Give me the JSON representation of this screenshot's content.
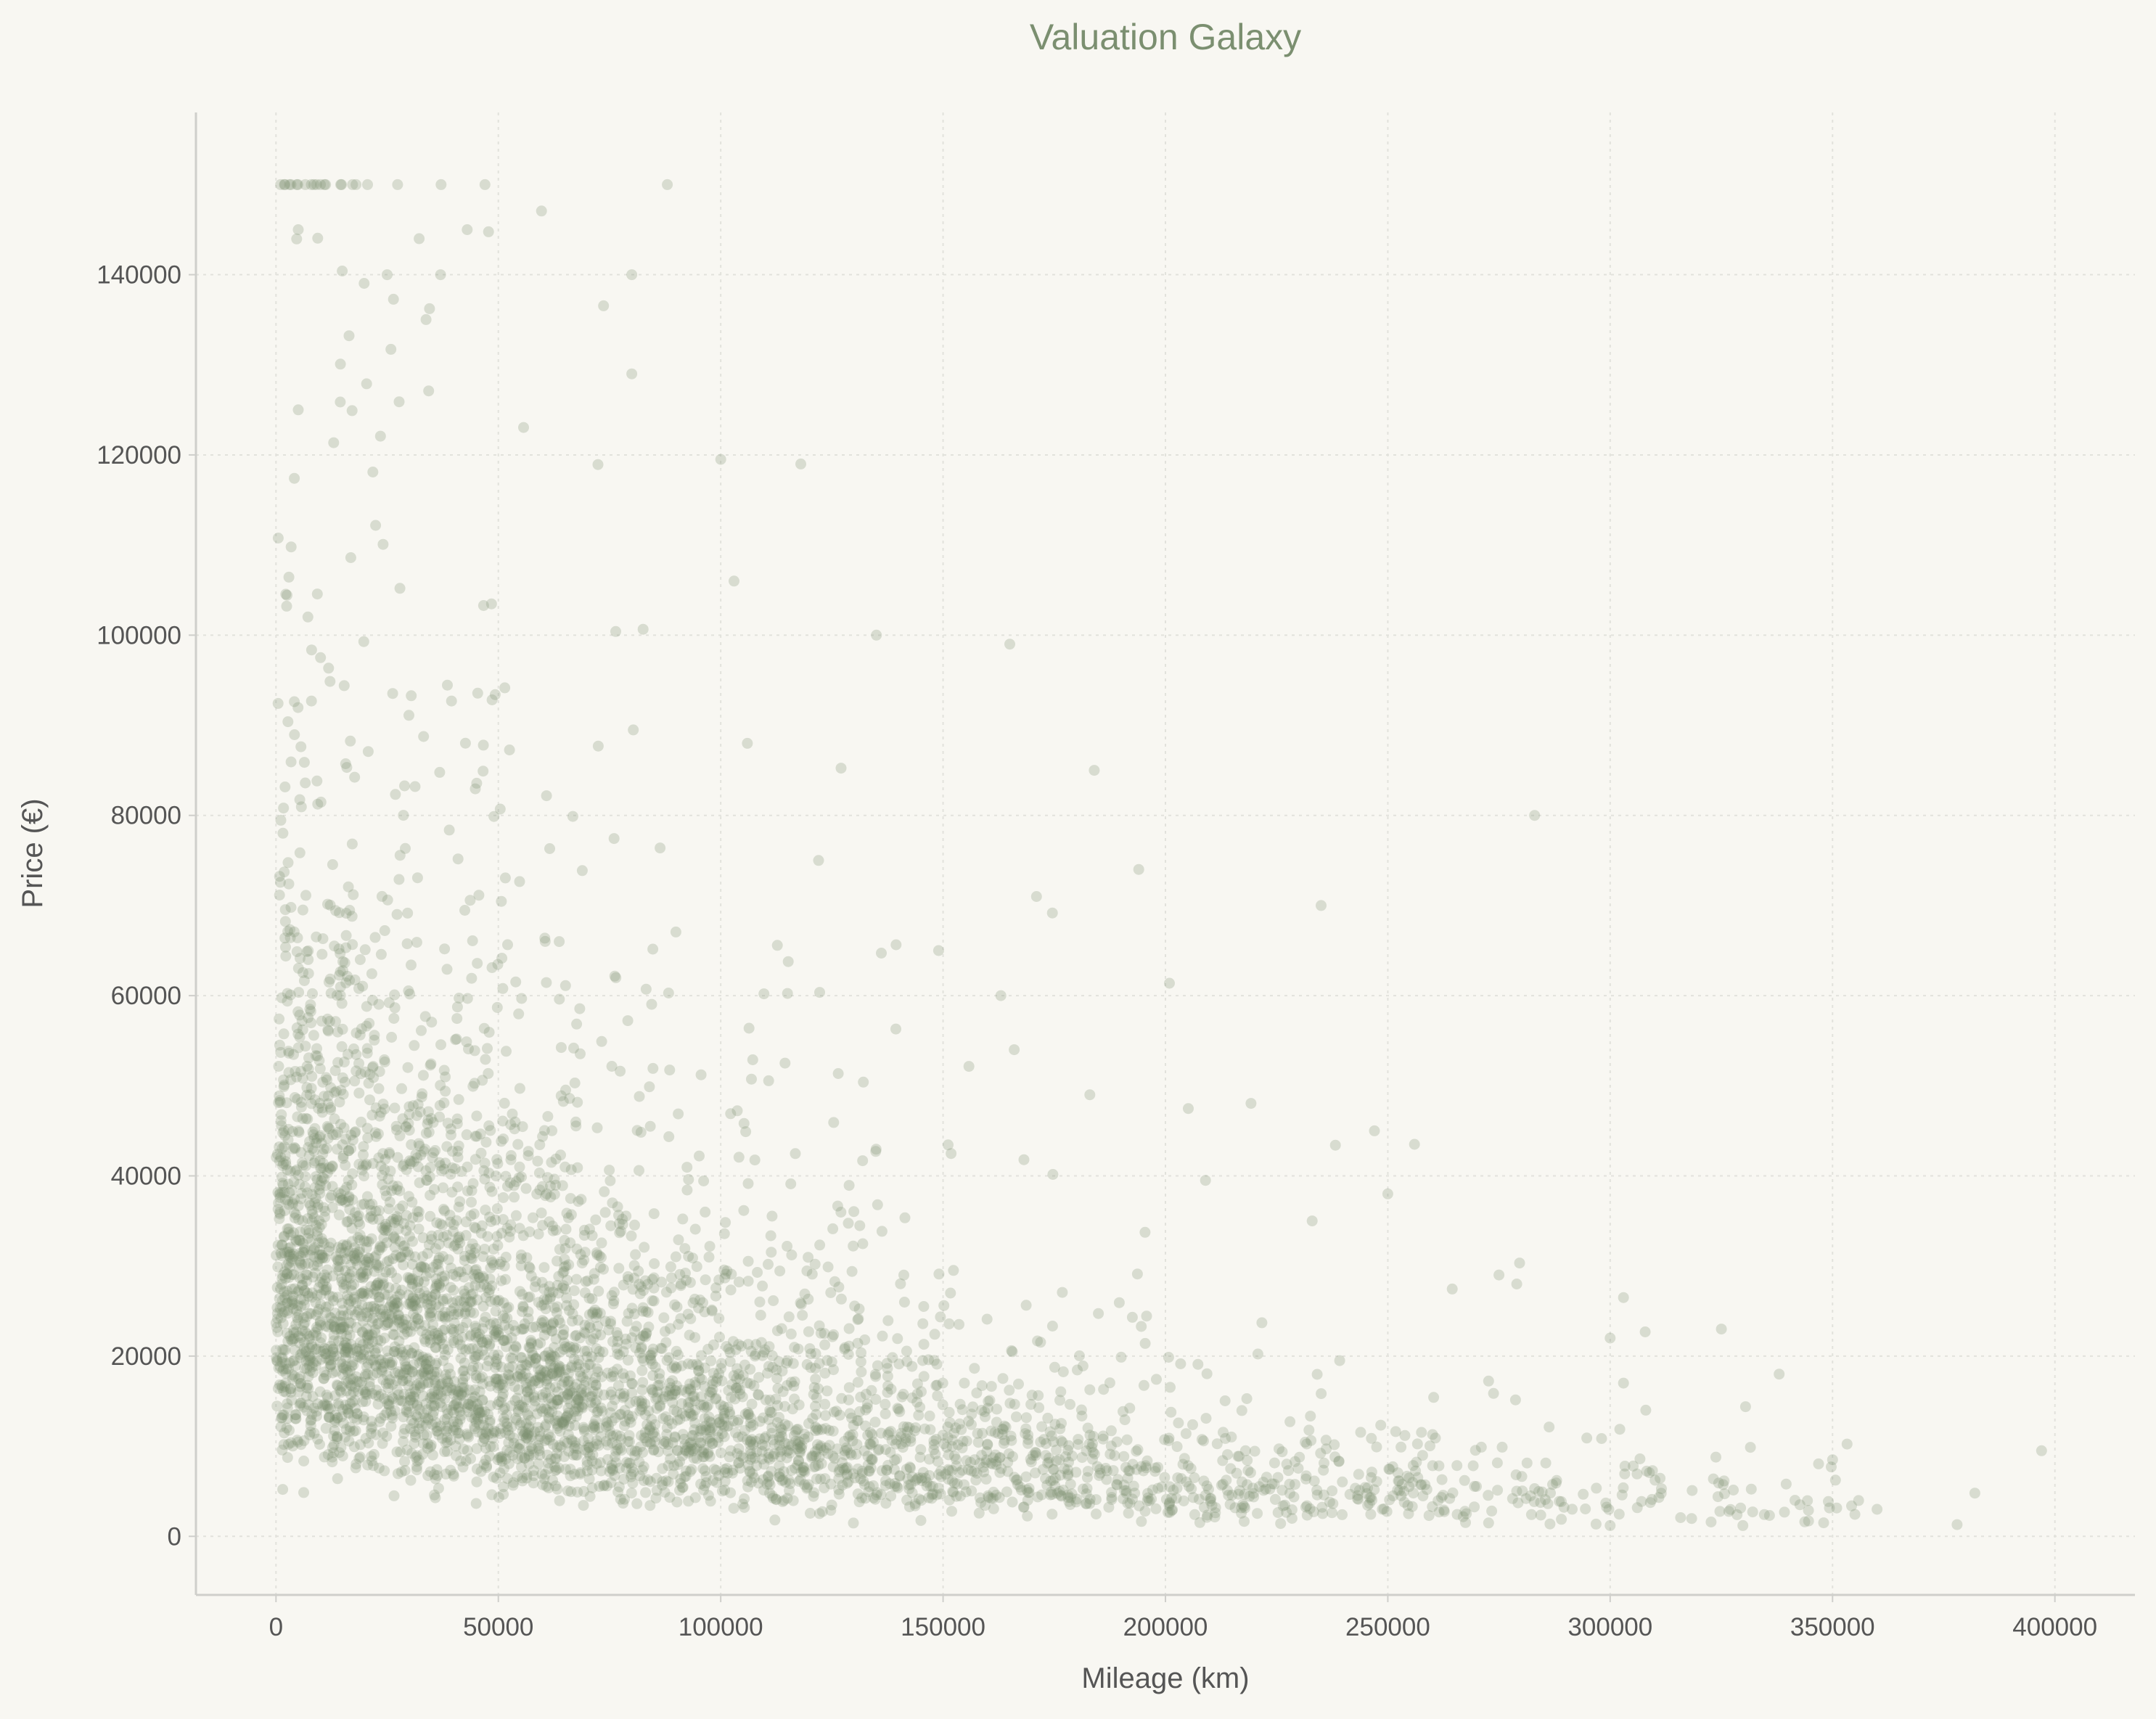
{
  "chart_data": {
    "type": "scatter",
    "title": "Valuation Galaxy",
    "xlabel": "Mileage (km)",
    "ylabel": "Price (€)",
    "xlim": [
      -18000,
      418000
    ],
    "ylim": [
      -6500,
      158000
    ],
    "xticks": [
      0,
      50000,
      100000,
      150000,
      200000,
      250000,
      300000,
      350000,
      400000
    ],
    "yticks": [
      0,
      20000,
      40000,
      60000,
      80000,
      100000,
      120000,
      140000
    ],
    "grid": true,
    "marker_color": "#7b8f70",
    "marker_alpha": 0.26,
    "notable_points": [
      {
        "x": 2000,
        "y": 150000
      },
      {
        "x": 10000,
        "y": 150000
      },
      {
        "x": 18000,
        "y": 150000
      },
      {
        "x": 47000,
        "y": 150000
      },
      {
        "x": 88000,
        "y": 150000
      },
      {
        "x": 5000,
        "y": 145000
      },
      {
        "x": 43000,
        "y": 145000
      },
      {
        "x": 80000,
        "y": 140000
      },
      {
        "x": 25000,
        "y": 140000
      },
      {
        "x": 37000,
        "y": 140000
      },
      {
        "x": 5000,
        "y": 125000
      },
      {
        "x": 80000,
        "y": 129000
      },
      {
        "x": 118000,
        "y": 119000
      },
      {
        "x": 100000,
        "y": 119500
      },
      {
        "x": 103000,
        "y": 106000
      },
      {
        "x": 135000,
        "y": 100000
      },
      {
        "x": 165000,
        "y": 99000
      },
      {
        "x": 106000,
        "y": 88000
      },
      {
        "x": 184000,
        "y": 85000
      },
      {
        "x": 283000,
        "y": 80000
      },
      {
        "x": 122000,
        "y": 75000
      },
      {
        "x": 194000,
        "y": 74000
      },
      {
        "x": 171000,
        "y": 71000
      },
      {
        "x": 235000,
        "y": 70000
      },
      {
        "x": 149000,
        "y": 65000
      },
      {
        "x": 163000,
        "y": 60000
      },
      {
        "x": 166000,
        "y": 54000
      },
      {
        "x": 183000,
        "y": 49000
      },
      {
        "x": 247000,
        "y": 45000
      },
      {
        "x": 256000,
        "y": 43500
      },
      {
        "x": 209000,
        "y": 39500
      },
      {
        "x": 250000,
        "y": 38000
      },
      {
        "x": 233000,
        "y": 35000
      },
      {
        "x": 275000,
        "y": 29000
      },
      {
        "x": 279000,
        "y": 28000
      },
      {
        "x": 303000,
        "y": 26500
      },
      {
        "x": 325000,
        "y": 23000
      },
      {
        "x": 300000,
        "y": 22000
      },
      {
        "x": 338000,
        "y": 18000
      },
      {
        "x": 303000,
        "y": 17000
      },
      {
        "x": 308000,
        "y": 14000
      },
      {
        "x": 397000,
        "y": 9500
      },
      {
        "x": 350000,
        "y": 8500
      },
      {
        "x": 382000,
        "y": 4800
      },
      {
        "x": 360000,
        "y": 3000
      },
      {
        "x": 378000,
        "y": 1300
      },
      {
        "x": 348000,
        "y": 1500
      },
      {
        "x": 300000,
        "y": 1200
      }
    ],
    "distribution": {
      "n_points": 4800,
      "description_free": true,
      "mileage_exponential_scale": 85000,
      "price_base": 30000,
      "price_decay_scale": 90000,
      "price_floor": 1200,
      "price_cap": 150000
    }
  }
}
